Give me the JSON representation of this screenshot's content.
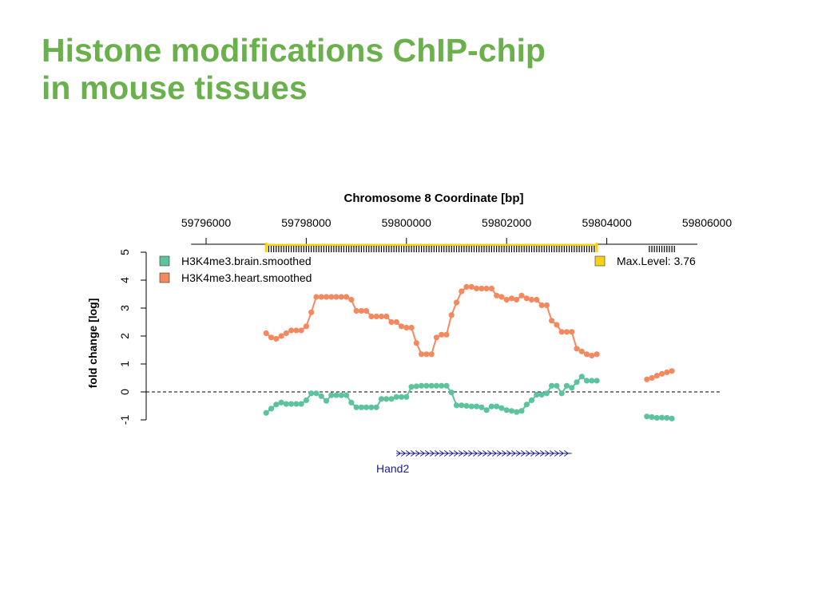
{
  "slide": {
    "title_line1": "Histone modifications ChIP-chip",
    "title_line2": "in mouse tissues"
  },
  "chart_data": {
    "type": "line",
    "title": "Chromosome 8 Coordinate [bp]",
    "xlabel": "",
    "ylabel": "fold change [log]",
    "xlim": [
      59795700,
      59806000
    ],
    "ylim": [
      -1.2,
      5.1
    ],
    "x_ticks": [
      59796000,
      59798000,
      59800000,
      59802000,
      59804000,
      59806000
    ],
    "x_tick_labels": [
      "59796000",
      "59798000",
      "59800000",
      "59802000",
      "59804000",
      "59806000"
    ],
    "y_ticks": [
      -1,
      0,
      1,
      2,
      3,
      4,
      5
    ],
    "y_tick_labels": [
      "-1",
      "0",
      "1",
      "2",
      "3",
      "4",
      "5"
    ],
    "legend_position": "top-left",
    "max_level_label": "Max.Level: 3.76",
    "max_level_color": "#f5d11a",
    "zero_line": "dashed",
    "probe_coverage": [
      [
        59797200,
        59803800
      ],
      [
        59804800,
        59805400
      ]
    ],
    "gene": {
      "name": "Hand2",
      "start": 59799800,
      "end": 59803300,
      "strand": "+",
      "color": "#1c1c8c"
    },
    "series": [
      {
        "name": "H3K4me3.brain.smoothed",
        "color": "#5dc39d",
        "segments": [
          {
            "x": [
              59797200,
              59797300,
              59797400,
              59797500,
              59797600,
              59797700,
              59797800,
              59797900,
              59798000,
              59798100,
              59798200,
              59798300,
              59798400,
              59798500,
              59798600,
              59798700,
              59798800,
              59798900,
              59799000,
              59799100,
              59799200,
              59799300,
              59799400,
              59799500,
              59799600,
              59799700,
              59799800,
              59799900,
              59800000,
              59800100,
              59800200,
              59800300,
              59800400,
              59800500,
              59800600,
              59800700,
              59800800,
              59800900,
              59801000,
              59801100,
              59801200,
              59801300,
              59801400,
              59801500,
              59801600,
              59801700,
              59801800,
              59801900,
              59802000,
              59802100,
              59802200,
              59802300,
              59802400,
              59802500,
              59802600,
              59802700,
              59802800,
              59802900,
              59803000,
              59803100,
              59803200,
              59803300,
              59803400,
              59803500,
              59803600,
              59803700,
              59803800
            ],
            "y": [
              -0.75,
              -0.6,
              -0.45,
              -0.38,
              -0.43,
              -0.43,
              -0.43,
              -0.43,
              -0.3,
              -0.05,
              -0.05,
              -0.15,
              -0.32,
              -0.12,
              -0.12,
              -0.12,
              -0.12,
              -0.38,
              -0.55,
              -0.55,
              -0.55,
              -0.55,
              -0.55,
              -0.25,
              -0.25,
              -0.25,
              -0.18,
              -0.18,
              -0.18,
              0.18,
              0.2,
              0.22,
              0.22,
              0.22,
              0.22,
              0.22,
              0.22,
              -0.02,
              -0.48,
              -0.48,
              -0.5,
              -0.52,
              -0.52,
              -0.55,
              -0.65,
              -0.52,
              -0.52,
              -0.58,
              -0.65,
              -0.68,
              -0.72,
              -0.68,
              -0.45,
              -0.3,
              -0.1,
              -0.1,
              -0.05,
              0.22,
              0.22,
              -0.05,
              0.22,
              0.15,
              0.35,
              0.55,
              0.4,
              0.4,
              0.4
            ]
          },
          {
            "x": [
              59804800,
              59804900,
              59805000,
              59805100,
              59805200,
              59805300
            ],
            "y": [
              -0.88,
              -0.9,
              -0.93,
              -0.92,
              -0.93,
              -0.95
            ]
          }
        ]
      },
      {
        "name": "H3K4me3.heart.smoothed",
        "color": "#f4895f",
        "segments": [
          {
            "x": [
              59797200,
              59797300,
              59797400,
              59797500,
              59797600,
              59797700,
              59797800,
              59797900,
              59798000,
              59798100,
              59798200,
              59798300,
              59798400,
              59798500,
              59798600,
              59798700,
              59798800,
              59798900,
              59799000,
              59799100,
              59799200,
              59799300,
              59799400,
              59799500,
              59799600,
              59799700,
              59799800,
              59799900,
              59800000,
              59800100,
              59800200,
              59800300,
              59800400,
              59800500,
              59800600,
              59800700,
              59800800,
              59800900,
              59801000,
              59801100,
              59801200,
              59801300,
              59801400,
              59801500,
              59801600,
              59801700,
              59801800,
              59801900,
              59802000,
              59802100,
              59802200,
              59802300,
              59802400,
              59802500,
              59802600,
              59802700,
              59802800,
              59802900,
              59803000,
              59803100,
              59803200,
              59803300,
              59803400,
              59803500,
              59803600,
              59803700,
              59803800
            ],
            "y": [
              2.1,
              1.95,
              1.9,
              2.0,
              2.1,
              2.2,
              2.2,
              2.2,
              2.35,
              2.85,
              3.4,
              3.4,
              3.4,
              3.4,
              3.4,
              3.4,
              3.4,
              3.3,
              2.9,
              2.9,
              2.9,
              2.7,
              2.7,
              2.7,
              2.7,
              2.5,
              2.5,
              2.35,
              2.3,
              2.3,
              1.75,
              1.35,
              1.35,
              1.35,
              1.95,
              2.05,
              2.05,
              2.75,
              3.2,
              3.6,
              3.76,
              3.76,
              3.7,
              3.7,
              3.7,
              3.7,
              3.45,
              3.4,
              3.3,
              3.35,
              3.3,
              3.45,
              3.35,
              3.3,
              3.3,
              3.1,
              3.1,
              2.55,
              2.4,
              2.15,
              2.15,
              2.15,
              1.55,
              1.45,
              1.35,
              1.3,
              1.35
            ]
          },
          {
            "x": [
              59804800,
              59804900,
              59805000,
              59805100,
              59805200,
              59805300
            ],
            "y": [
              0.45,
              0.5,
              0.58,
              0.65,
              0.7,
              0.75
            ]
          }
        ]
      }
    ]
  }
}
